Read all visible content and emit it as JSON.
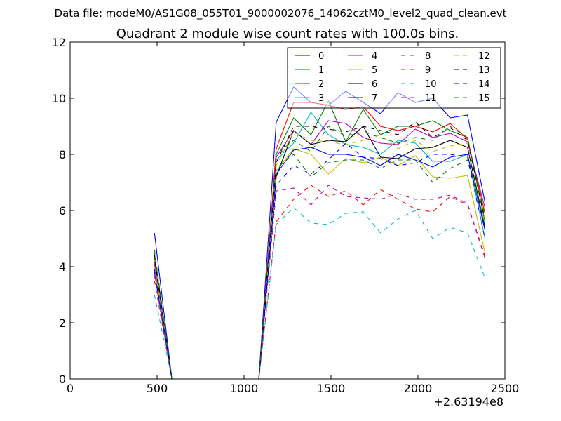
{
  "chart_data": {
    "type": "line",
    "suptitle": "Data file: modeM0/AS1G08_055T01_9000002076_14062cztM0_level2_quad_clean.evt",
    "title": "Quadrant 2 module wise count rates with 100.0s bins.",
    "xlabel": "",
    "ylabel": "",
    "x_offset_label": "+2.63194e8",
    "xlim": [
      0,
      2500
    ],
    "ylim": [
      0,
      12
    ],
    "xticks": [
      0,
      500,
      1000,
      1500,
      2000,
      2500
    ],
    "yticks": [
      0,
      2,
      4,
      6,
      8,
      10,
      12
    ],
    "legend_position": "top-right",
    "legend_columns": 4,
    "x": [
      485,
      585,
      685,
      785,
      885,
      985,
      1085,
      1185,
      1285,
      1385,
      1485,
      1585,
      1685,
      1785,
      1885,
      1985,
      2085,
      2185,
      2285,
      2385
    ],
    "series": [
      {
        "name": "0",
        "color": "#0000ff",
        "dash": "solid",
        "values": [
          5.2,
          0,
          0,
          0,
          0,
          0,
          0,
          9.15,
          10.4,
          9.85,
          9.75,
          10.25,
          9.85,
          9.45,
          10.2,
          9.85,
          10.0,
          9.3,
          9.4,
          6.3
        ]
      },
      {
        "name": "1",
        "color": "#008000",
        "dash": "solid",
        "values": [
          4.2,
          0,
          0,
          0,
          0,
          0,
          0,
          8.0,
          9.3,
          8.7,
          9.9,
          8.45,
          9.6,
          8.7,
          9.0,
          9.0,
          9.2,
          8.85,
          8.6,
          5.6
        ]
      },
      {
        "name": "2",
        "color": "#ff0000",
        "dash": "solid",
        "values": [
          4.4,
          0,
          0,
          0,
          0,
          0,
          0,
          8.2,
          9.85,
          9.85,
          9.75,
          9.6,
          9.7,
          9.0,
          8.85,
          9.0,
          8.8,
          9.1,
          8.55,
          5.9
        ]
      },
      {
        "name": "3",
        "color": "#00bfbf",
        "dash": "solid",
        "values": [
          4.3,
          0,
          0,
          0,
          0,
          0,
          0,
          7.8,
          8.4,
          9.5,
          8.7,
          8.35,
          8.25,
          8.0,
          8.5,
          8.4,
          7.75,
          7.75,
          8.0,
          5.0
        ]
      },
      {
        "name": "4",
        "color": "#bf00bf",
        "dash": "solid",
        "values": [
          4.1,
          0,
          0,
          0,
          0,
          0,
          0,
          7.9,
          8.85,
          8.35,
          9.2,
          9.1,
          8.6,
          8.4,
          8.35,
          8.9,
          8.6,
          8.75,
          8.45,
          6.1
        ]
      },
      {
        "name": "5",
        "color": "#bfbf00",
        "dash": "solid",
        "values": [
          4.0,
          0,
          0,
          0,
          0,
          0,
          0,
          7.4,
          8.2,
          8.0,
          7.3,
          7.85,
          7.7,
          7.9,
          7.6,
          7.95,
          7.2,
          7.15,
          7.25,
          4.5
        ]
      },
      {
        "name": "6",
        "color": "#000000",
        "dash": "solid",
        "values": [
          4.3,
          0,
          0,
          0,
          0,
          0,
          0,
          7.2,
          8.85,
          8.35,
          8.5,
          8.45,
          9.0,
          7.9,
          7.85,
          8.2,
          8.25,
          8.5,
          8.25,
          5.4
        ]
      },
      {
        "name": "7",
        "color": "#0000ff",
        "dash": "solid",
        "values": [
          3.8,
          0,
          0,
          0,
          0,
          0,
          0,
          7.3,
          8.15,
          8.25,
          8.0,
          8.0,
          7.9,
          7.6,
          8.0,
          7.8,
          7.55,
          7.9,
          8.0,
          5.3
        ]
      },
      {
        "name": "8",
        "color": "#008000",
        "dash": "dashed",
        "values": [
          4.5,
          0,
          0,
          0,
          0,
          0,
          0,
          7.5,
          8.0,
          7.2,
          7.7,
          7.8,
          7.8,
          7.5,
          7.8,
          7.8,
          7.0,
          7.5,
          7.8,
          5.5
        ]
      },
      {
        "name": "9",
        "color": "#ff0000",
        "dash": "dashed",
        "values": [
          3.5,
          0,
          0,
          0,
          0,
          0,
          0,
          5.6,
          6.4,
          6.9,
          6.5,
          6.7,
          6.2,
          6.75,
          6.4,
          6.05,
          5.95,
          6.5,
          6.2,
          4.4
        ]
      },
      {
        "name": "10",
        "color": "#00bfbf",
        "dash": "dashed",
        "values": [
          3.0,
          0,
          0,
          0,
          0,
          0,
          0,
          5.5,
          6.1,
          5.55,
          5.5,
          5.9,
          5.95,
          5.2,
          5.7,
          6.0,
          5.0,
          5.4,
          5.2,
          3.6
        ]
      },
      {
        "name": "11",
        "color": "#bf00bf",
        "dash": "dashed",
        "values": [
          3.7,
          0,
          0,
          0,
          0,
          0,
          0,
          6.7,
          6.8,
          6.2,
          6.9,
          6.5,
          6.45,
          6.4,
          6.6,
          6.4,
          6.4,
          6.55,
          6.25,
          4.3
        ]
      },
      {
        "name": "12",
        "color": "#bfbf00",
        "dash": "dashed",
        "values": [
          4.3,
          0,
          0,
          0,
          0,
          0,
          0,
          7.6,
          8.8,
          8.5,
          8.45,
          8.35,
          8.5,
          8.7,
          8.2,
          8.5,
          8.1,
          8.3,
          8.4,
          5.5
        ]
      },
      {
        "name": "13",
        "color": "#000000",
        "dash": "dashed",
        "values": [
          4.4,
          0,
          0,
          0,
          0,
          0,
          0,
          7.7,
          9.0,
          9.0,
          8.9,
          8.8,
          9.0,
          8.85,
          8.7,
          9.15,
          8.6,
          8.95,
          8.5,
          5.7
        ]
      },
      {
        "name": "14",
        "color": "#0000ff",
        "dash": "dashed",
        "values": [
          3.9,
          0,
          0,
          0,
          0,
          0,
          0,
          6.9,
          7.6,
          7.3,
          7.8,
          8.4,
          7.9,
          7.85,
          7.6,
          7.7,
          8.0,
          8.0,
          7.9,
          5.0
        ]
      },
      {
        "name": "15",
        "color": "#008000",
        "dash": "dashed",
        "values": [
          4.6,
          0,
          0,
          0,
          0,
          0,
          0,
          8.0,
          8.5,
          8.1,
          9.0,
          8.65,
          8.8,
          8.6,
          8.4,
          8.6,
          8.5,
          9.0,
          8.6,
          5.8
        ]
      }
    ]
  }
}
